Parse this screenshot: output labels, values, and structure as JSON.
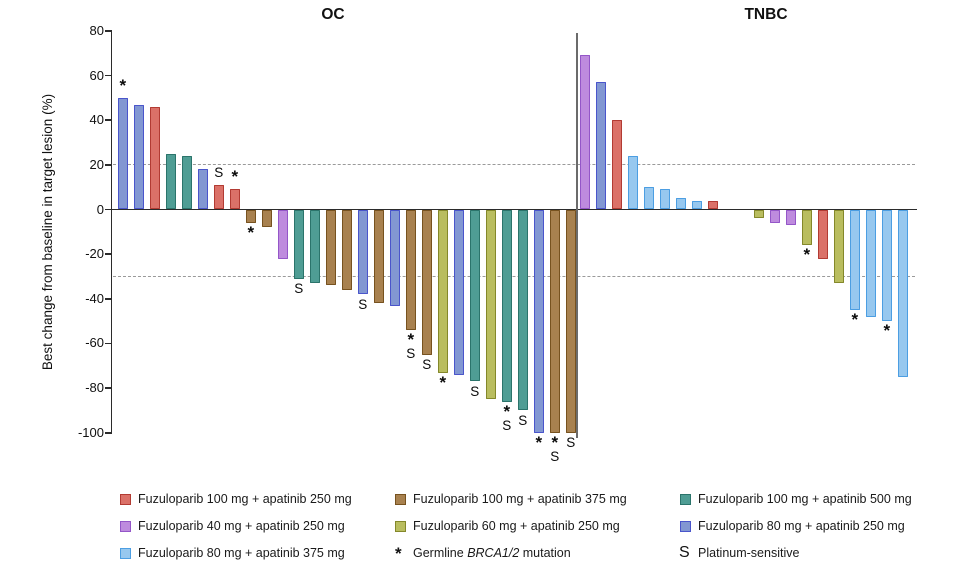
{
  "figure": {
    "ylabel": "Best change from baseline in target lesion (%)",
    "panel_titles": {
      "left": "OC",
      "right": "TNBC"
    }
  },
  "colors": {
    "f100_a250": {
      "fill": "#DB7168",
      "stroke": "#B23B33"
    },
    "f40_a250": {
      "fill": "#BE8BDE",
      "stroke": "#9456C8"
    },
    "f80_a375": {
      "fill": "#97C8EF",
      "stroke": "#4C9EE2"
    },
    "f100_a375": {
      "fill": "#A8814F",
      "stroke": "#77521F"
    },
    "f60_a250": {
      "fill": "#B9BD5F",
      "stroke": "#84882A"
    },
    "f100_a500": {
      "fill": "#4F9D94",
      "stroke": "#2B746B"
    },
    "f80_a250": {
      "fill": "#8297D2",
      "stroke": "#4A55CB"
    }
  },
  "chart_data": {
    "type": "bar",
    "title": "",
    "ylabel": "Best change from baseline in target lesion (%)",
    "ylim": [
      -100,
      80
    ],
    "yticks": [
      80,
      60,
      40,
      20,
      0,
      -20,
      -40,
      -60,
      -80,
      -100
    ],
    "reference_lines": [
      20,
      -30
    ],
    "marker_meanings": {
      "*": "Germline BRCA1/2 mutation",
      "S": "Platinum-sensitive"
    },
    "panels": [
      {
        "title": "OC",
        "bars": [
          {
            "value": 50,
            "group": "f80_a250",
            "markers": [
              "*"
            ]
          },
          {
            "value": 47,
            "group": "f80_a250",
            "markers": []
          },
          {
            "value": 46,
            "group": "f100_a250",
            "markers": []
          },
          {
            "value": 25,
            "group": "f100_a500",
            "markers": []
          },
          {
            "value": 24,
            "group": "f100_a500",
            "markers": []
          },
          {
            "value": 18,
            "group": "f80_a250",
            "markers": []
          },
          {
            "value": 11,
            "group": "f100_a250",
            "markers": [
              "S"
            ]
          },
          {
            "value": 9,
            "group": "f100_a250",
            "markers": [
              "*"
            ]
          },
          {
            "value": -6,
            "group": "f100_a375",
            "markers": [
              "*"
            ]
          },
          {
            "value": -8,
            "group": "f100_a375",
            "markers": []
          },
          {
            "value": -22,
            "group": "f40_a250",
            "markers": []
          },
          {
            "value": -31,
            "group": "f100_a500",
            "markers": [
              "S"
            ]
          },
          {
            "value": -33,
            "group": "f100_a500",
            "markers": []
          },
          {
            "value": -34,
            "group": "f100_a375",
            "markers": []
          },
          {
            "value": -36,
            "group": "f100_a375",
            "markers": []
          },
          {
            "value": -38,
            "group": "f80_a250",
            "markers": [
              "S"
            ]
          },
          {
            "value": -42,
            "group": "f100_a375",
            "markers": []
          },
          {
            "value": -43,
            "group": "f80_a250",
            "markers": []
          },
          {
            "value": -54,
            "group": "f100_a375",
            "markers": [
              "*",
              "S"
            ]
          },
          {
            "value": -65,
            "group": "f100_a375",
            "markers": [
              "S"
            ]
          },
          {
            "value": -73,
            "group": "f60_a250",
            "markers": [
              "*"
            ]
          },
          {
            "value": -74,
            "group": "f80_a250",
            "markers": []
          },
          {
            "value": -77,
            "group": "f100_a500",
            "markers": [
              "S"
            ]
          },
          {
            "value": -85,
            "group": "f60_a250",
            "markers": []
          },
          {
            "value": -86,
            "group": "f100_a500",
            "markers": [
              "*",
              "S"
            ]
          },
          {
            "value": -90,
            "group": "f100_a500",
            "markers": [
              "S"
            ]
          },
          {
            "value": -100,
            "group": "f80_a250",
            "markers": [
              "*"
            ]
          },
          {
            "value": -100,
            "group": "f100_a375",
            "markers": [
              "*",
              "S"
            ]
          },
          {
            "value": -100,
            "group": "f100_a375",
            "markers": [
              "S"
            ]
          }
        ]
      },
      {
        "title": "TNBC",
        "bars": [
          {
            "value": 69,
            "group": "f40_a250",
            "markers": []
          },
          {
            "value": 57,
            "group": "f80_a250",
            "markers": []
          },
          {
            "value": 40,
            "group": "f100_a250",
            "markers": []
          },
          {
            "value": 24,
            "group": "f80_a375",
            "markers": []
          },
          {
            "value": 10,
            "group": "f80_a375",
            "markers": []
          },
          {
            "value": 9,
            "group": "f80_a375",
            "markers": []
          },
          {
            "value": 5,
            "group": "f80_a375",
            "markers": []
          },
          {
            "value": 4,
            "group": "f80_a375",
            "markers": []
          },
          {
            "value": 4,
            "group": "f100_a250",
            "markers": []
          },
          {
            "value": -4,
            "group": "f60_a250",
            "markers": []
          },
          {
            "value": -6,
            "group": "f40_a250",
            "markers": []
          },
          {
            "value": -7,
            "group": "f40_a250",
            "markers": []
          },
          {
            "value": -16,
            "group": "f60_a250",
            "markers": [
              "*"
            ]
          },
          {
            "value": -22,
            "group": "f100_a250",
            "markers": []
          },
          {
            "value": -33,
            "group": "f60_a250",
            "markers": []
          },
          {
            "value": -45,
            "group": "f80_a375",
            "markers": [
              "*"
            ]
          },
          {
            "value": -48,
            "group": "f80_a375",
            "markers": []
          },
          {
            "value": -50,
            "group": "f80_a375",
            "markers": [
              "*"
            ]
          },
          {
            "value": -75,
            "group": "f80_a375",
            "markers": []
          }
        ]
      }
    ]
  },
  "legend": {
    "columns": [
      [
        {
          "type": "swatch",
          "group": "f100_a250",
          "label": "Fuzuloparib 100 mg + apatinib 250 mg"
        },
        {
          "type": "swatch",
          "group": "f40_a250",
          "label": "Fuzuloparib 40 mg + apatinib 250 mg"
        },
        {
          "type": "swatch",
          "group": "f80_a375",
          "label": "Fuzuloparib 80 mg + apatinib 375 mg"
        }
      ],
      [
        {
          "type": "swatch",
          "group": "f100_a375",
          "label": "Fuzuloparib 100 mg + apatinib 375 mg"
        },
        {
          "type": "swatch",
          "group": "f60_a250",
          "label": "Fuzuloparib 60 mg + apatinib 250 mg"
        },
        {
          "type": "symbol",
          "symbol": "*",
          "label_parts": [
            [
              "Germline ",
              false
            ],
            [
              "BRCA1/2",
              true
            ],
            [
              " mutation",
              false
            ]
          ]
        }
      ],
      [
        {
          "type": "swatch",
          "group": "f100_a500",
          "label": "Fuzuloparib 100 mg + apatinib 500 mg"
        },
        {
          "type": "swatch",
          "group": "f80_a250",
          "label": "Fuzuloparib 80 mg + apatinib 250 mg"
        },
        {
          "type": "symbol",
          "symbol": "S",
          "label_parts": [
            [
              "Platinum-sensitive",
              false
            ]
          ]
        }
      ]
    ]
  }
}
